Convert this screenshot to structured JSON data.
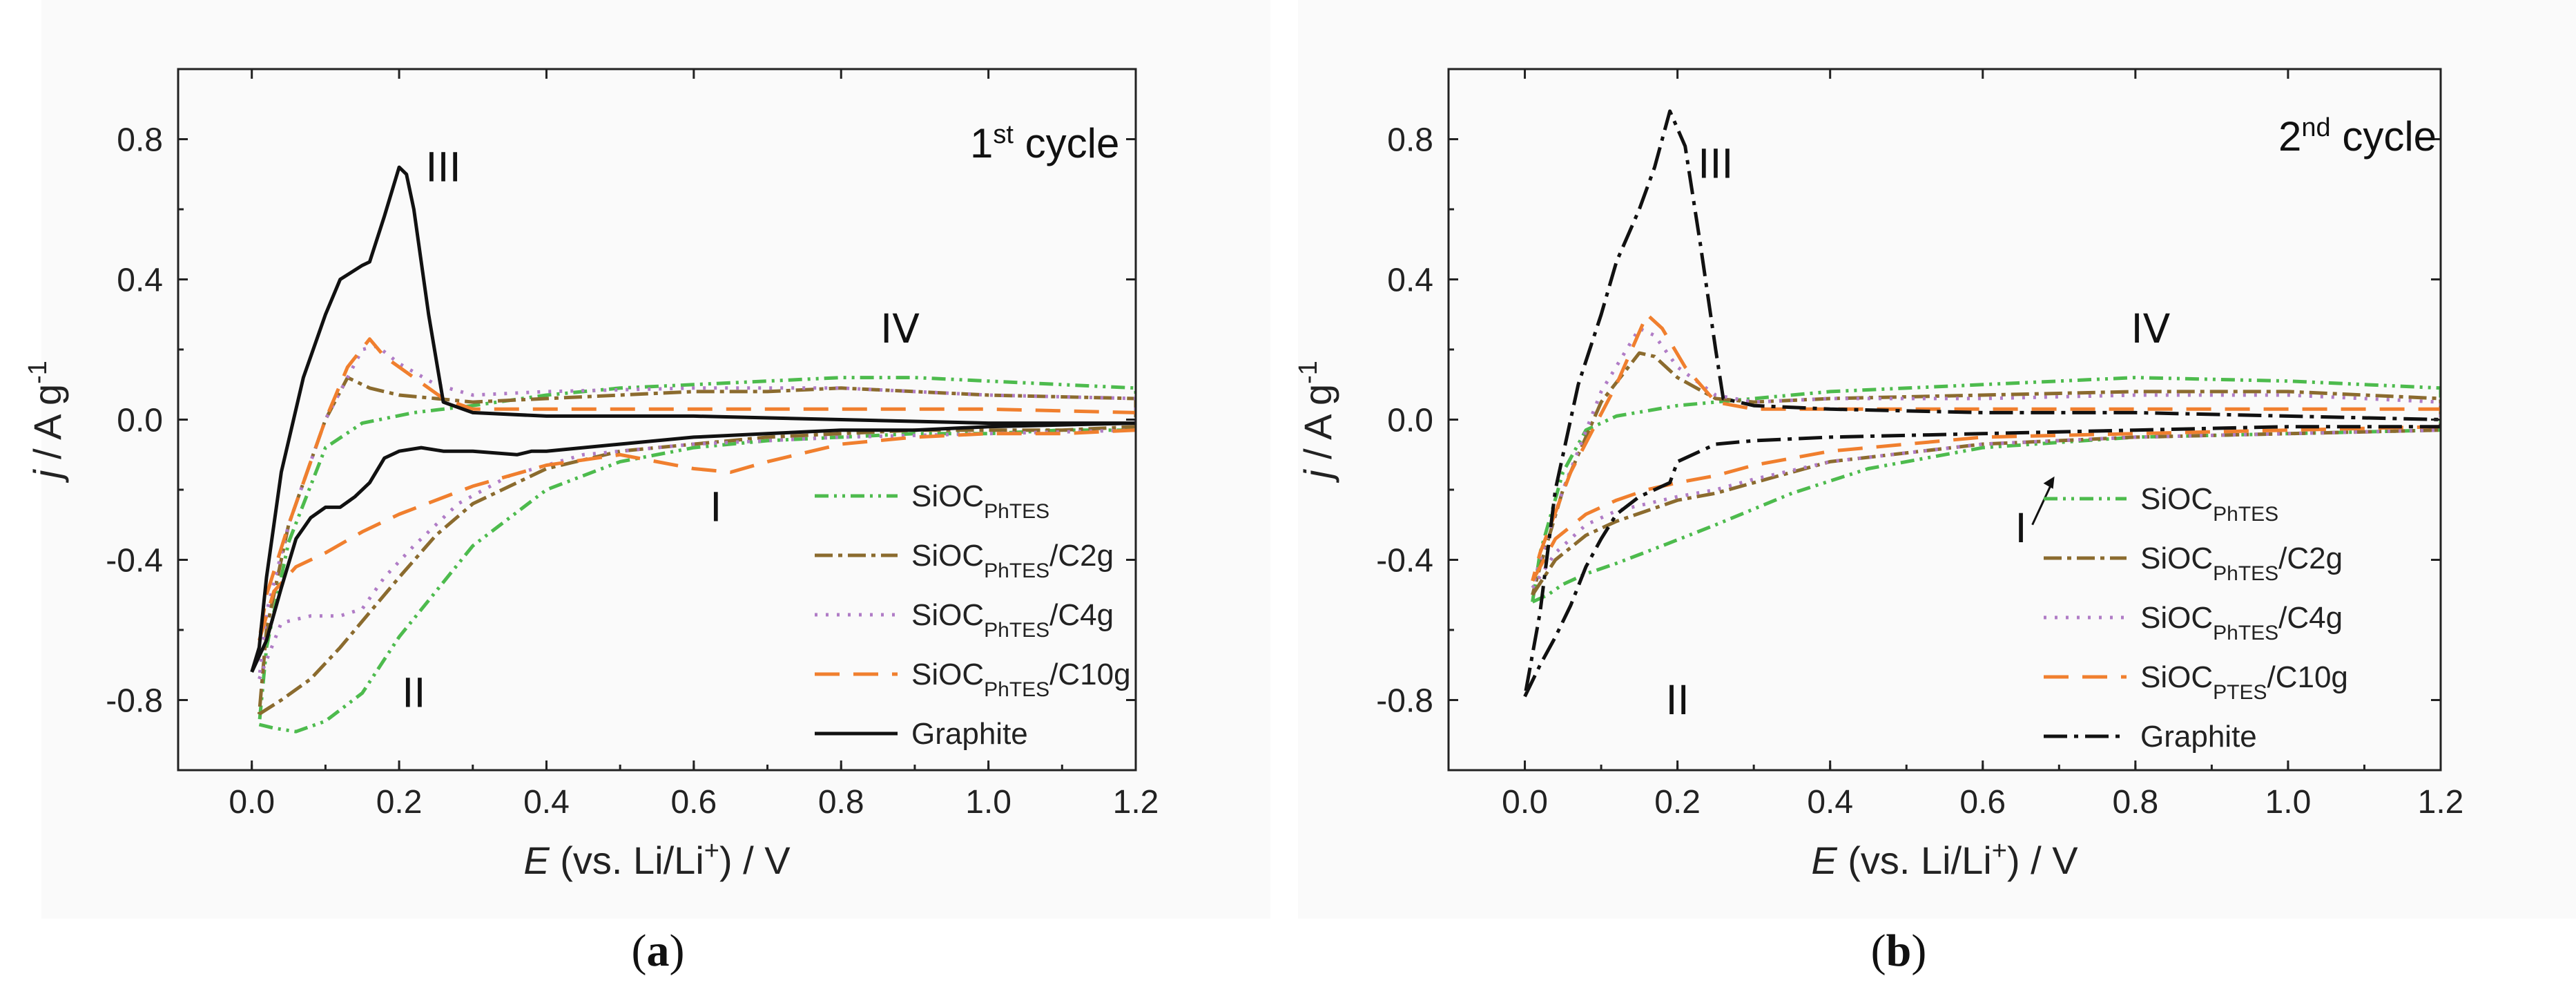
{
  "chart_data": [
    {
      "type": "line",
      "panel_label": "a",
      "title": "1st cycle",
      "title_main": "1",
      "title_sup": "st",
      "title_rest": " cycle",
      "xlabel": "E (vs. Li/Li+) / V",
      "ylabel": "j / A g-1",
      "xlim": [
        -0.1,
        1.2
      ],
      "ylim": [
        -1.0,
        1.0
      ],
      "xticks": [
        "0.0",
        "0.2",
        "0.4",
        "0.6",
        "0.8",
        "1.0",
        "1.2"
      ],
      "yticks": [
        "-0.8",
        "-0.4",
        "0.0",
        "0.4",
        "0.8"
      ],
      "annotations": [
        {
          "text": "III",
          "x": 0.26,
          "y": 0.68
        },
        {
          "text": "IV",
          "x": 0.88,
          "y": 0.22
        },
        {
          "text": "I",
          "x": 0.63,
          "y": -0.29
        },
        {
          "text": "II",
          "x": 0.22,
          "y": -0.82
        }
      ],
      "series": [
        {
          "name": "SiOC",
          "sub": "PhTES",
          "suffix": "",
          "color": "#4dbb4d",
          "dash": "20 8 4 8 4 8",
          "x": [
            0.01,
            0.03,
            0.06,
            0.1,
            0.15,
            0.2,
            0.3,
            0.4,
            0.5,
            0.6,
            0.7,
            0.8,
            0.9,
            1.0,
            1.1,
            1.2,
            1.2,
            1.1,
            1.0,
            0.9,
            0.8,
            0.7,
            0.6,
            0.5,
            0.4,
            0.3,
            0.22,
            0.15,
            0.1,
            0.05,
            0.02,
            0.01
          ],
          "y": [
            -0.87,
            -0.88,
            -0.89,
            -0.86,
            -0.78,
            -0.62,
            -0.36,
            -0.2,
            -0.12,
            -0.08,
            -0.06,
            -0.05,
            -0.04,
            -0.04,
            -0.03,
            -0.03,
            0.09,
            0.1,
            0.11,
            0.12,
            0.12,
            0.11,
            0.1,
            0.09,
            0.07,
            0.04,
            0.02,
            -0.01,
            -0.08,
            -0.35,
            -0.65,
            -0.87
          ]
        },
        {
          "name": "SiOC",
          "sub": "PhTES",
          "suffix": "/C2g",
          "color": "#8b6b2e",
          "dash": "26 8 6 8",
          "x": [
            0.01,
            0.04,
            0.08,
            0.12,
            0.16,
            0.2,
            0.25,
            0.3,
            0.4,
            0.5,
            0.6,
            0.7,
            0.8,
            0.9,
            1.0,
            1.1,
            1.2,
            1.2,
            1.0,
            0.9,
            0.8,
            0.7,
            0.6,
            0.5,
            0.4,
            0.3,
            0.25,
            0.2,
            0.16,
            0.13,
            0.1,
            0.05,
            0.02,
            0.01
          ],
          "y": [
            -0.84,
            -0.8,
            -0.74,
            -0.65,
            -0.55,
            -0.45,
            -0.33,
            -0.24,
            -0.14,
            -0.09,
            -0.07,
            -0.05,
            -0.04,
            -0.03,
            -0.03,
            -0.03,
            -0.02,
            0.06,
            0.07,
            0.08,
            0.09,
            0.08,
            0.08,
            0.07,
            0.06,
            0.05,
            0.06,
            0.07,
            0.09,
            0.12,
            0.0,
            -0.3,
            -0.6,
            -0.84
          ]
        },
        {
          "name": "SiOC",
          "sub": "PhTES",
          "suffix": "/C4g",
          "color": "#b07cc6",
          "dash": "4 12",
          "x": [
            0.01,
            0.04,
            0.08,
            0.12,
            0.15,
            0.18,
            0.22,
            0.28,
            0.35,
            0.45,
            0.6,
            0.8,
            1.0,
            1.2,
            1.2,
            1.0,
            0.8,
            0.6,
            0.4,
            0.3,
            0.25,
            0.2,
            0.17,
            0.15,
            0.1,
            0.05,
            0.02,
            0.01
          ],
          "y": [
            -0.74,
            -0.58,
            -0.56,
            -0.56,
            -0.54,
            -0.45,
            -0.36,
            -0.24,
            -0.16,
            -0.1,
            -0.07,
            -0.05,
            -0.04,
            -0.03,
            0.06,
            0.07,
            0.09,
            0.09,
            0.08,
            0.07,
            0.1,
            0.16,
            0.21,
            0.2,
            0.0,
            -0.3,
            -0.55,
            -0.74
          ]
        },
        {
          "name": "SiOC",
          "sub": "PhTES",
          "suffix": "/C10g",
          "color": "#f07f2e",
          "dash": "36 20",
          "x": [
            0.01,
            0.03,
            0.06,
            0.1,
            0.15,
            0.2,
            0.25,
            0.3,
            0.35,
            0.4,
            0.5,
            0.6,
            0.65,
            0.7,
            0.8,
            0.9,
            1.0,
            1.1,
            1.2,
            1.2,
            1.0,
            0.8,
            0.6,
            0.4,
            0.3,
            0.26,
            0.22,
            0.18,
            0.16,
            0.13,
            0.1,
            0.05,
            0.02,
            0.01
          ],
          "y": [
            -0.63,
            -0.49,
            -0.42,
            -0.38,
            -0.32,
            -0.27,
            -0.23,
            -0.19,
            -0.16,
            -0.13,
            -0.1,
            -0.14,
            -0.15,
            -0.12,
            -0.07,
            -0.05,
            -0.04,
            -0.04,
            -0.03,
            0.02,
            0.03,
            0.03,
            0.03,
            0.03,
            0.03,
            0.06,
            0.12,
            0.18,
            0.23,
            0.15,
            0.0,
            -0.3,
            -0.5,
            -0.63
          ]
        },
        {
          "name": "Graphite",
          "sub": "",
          "suffix": "",
          "color": "#111111",
          "dash": "",
          "x": [
            0.0,
            0.02,
            0.04,
            0.06,
            0.08,
            0.1,
            0.12,
            0.14,
            0.16,
            0.18,
            0.2,
            0.23,
            0.26,
            0.3,
            0.36,
            0.38,
            0.4,
            0.5,
            0.6,
            0.7,
            0.8,
            0.9,
            1.0,
            1.2,
            1.2,
            1.0,
            0.8,
            0.6,
            0.4,
            0.3,
            0.26,
            0.24,
            0.22,
            0.21,
            0.2,
            0.18,
            0.16,
            0.15,
            0.12,
            0.1,
            0.07,
            0.04,
            0.02,
            0.01,
            0.0
          ],
          "y": [
            -0.72,
            -0.63,
            -0.48,
            -0.34,
            -0.28,
            -0.25,
            -0.25,
            -0.22,
            -0.18,
            -0.11,
            -0.09,
            -0.08,
            -0.09,
            -0.09,
            -0.1,
            -0.09,
            -0.09,
            -0.07,
            -0.05,
            -0.04,
            -0.03,
            -0.03,
            -0.02,
            -0.01,
            -0.01,
            -0.01,
            0.0,
            0.01,
            0.01,
            0.02,
            0.05,
            0.3,
            0.6,
            0.7,
            0.72,
            0.58,
            0.45,
            0.44,
            0.4,
            0.3,
            0.12,
            -0.15,
            -0.45,
            -0.65,
            -0.72
          ]
        }
      ]
    },
    {
      "type": "line",
      "panel_label": "b",
      "title": "2nd cycle",
      "title_main": "2",
      "title_sup": "nd",
      "title_rest": " cycle",
      "xlabel": "E (vs. Li/Li+) / V",
      "ylabel": "j / A g-1",
      "xlim": [
        -0.1,
        1.2
      ],
      "ylim": [
        -1.0,
        1.0
      ],
      "xticks": [
        "0.0",
        "0.2",
        "0.4",
        "0.6",
        "0.8",
        "1.0",
        "1.2"
      ],
      "yticks": [
        "-0.8",
        "-0.4",
        "0.0",
        "0.4",
        "0.8"
      ],
      "annotations": [
        {
          "text": "III",
          "x": 0.25,
          "y": 0.69
        },
        {
          "text": "IV",
          "x": 0.82,
          "y": 0.22
        },
        {
          "text": "I",
          "x": 0.65,
          "y": -0.35
        },
        {
          "text": "II",
          "x": 0.2,
          "y": -0.84
        }
      ],
      "series": [
        {
          "name": "SiOC",
          "sub": "PhTES",
          "suffix": "",
          "color": "#4dbb4d",
          "dash": "20 8 4 8 4 8",
          "x": [
            0.01,
            0.03,
            0.05,
            0.08,
            0.12,
            0.18,
            0.25,
            0.35,
            0.45,
            0.6,
            0.8,
            1.0,
            1.2,
            1.2,
            1.0,
            0.8,
            0.6,
            0.4,
            0.3,
            0.2,
            0.12,
            0.08,
            0.05,
            0.02,
            0.01
          ],
          "y": [
            -0.52,
            -0.5,
            -0.47,
            -0.44,
            -0.41,
            -0.36,
            -0.3,
            -0.21,
            -0.14,
            -0.08,
            -0.05,
            -0.04,
            -0.03,
            0.09,
            0.11,
            0.12,
            0.1,
            0.08,
            0.06,
            0.04,
            0.01,
            -0.03,
            -0.15,
            -0.38,
            -0.52
          ]
        },
        {
          "name": "SiOC",
          "sub": "PhTES",
          "suffix": "/C2g",
          "color": "#8b6b2e",
          "dash": "26 8 6 8",
          "x": [
            0.01,
            0.04,
            0.08,
            0.12,
            0.16,
            0.2,
            0.25,
            0.3,
            0.4,
            0.6,
            0.8,
            1.0,
            1.2,
            1.2,
            1.0,
            0.8,
            0.6,
            0.4,
            0.3,
            0.25,
            0.2,
            0.17,
            0.15,
            0.1,
            0.05,
            0.02,
            0.01
          ],
          "y": [
            -0.5,
            -0.4,
            -0.33,
            -0.29,
            -0.26,
            -0.23,
            -0.21,
            -0.18,
            -0.12,
            -0.07,
            -0.05,
            -0.04,
            -0.03,
            0.06,
            0.08,
            0.08,
            0.07,
            0.06,
            0.05,
            0.06,
            0.12,
            0.18,
            0.19,
            0.05,
            -0.2,
            -0.42,
            -0.5
          ]
        },
        {
          "name": "SiOC",
          "sub": "PhTES",
          "suffix": "/C4g",
          "color": "#b07cc6",
          "dash": "4 12",
          "x": [
            0.01,
            0.04,
            0.08,
            0.12,
            0.16,
            0.2,
            0.25,
            0.3,
            0.4,
            0.6,
            0.8,
            1.0,
            1.2,
            1.2,
            1.0,
            0.8,
            0.6,
            0.4,
            0.3,
            0.25,
            0.2,
            0.17,
            0.15,
            0.1,
            0.05,
            0.02,
            0.01
          ],
          "y": [
            -0.48,
            -0.38,
            -0.3,
            -0.26,
            -0.24,
            -0.22,
            -0.2,
            -0.17,
            -0.12,
            -0.07,
            -0.05,
            -0.04,
            -0.03,
            0.05,
            0.07,
            0.07,
            0.06,
            0.06,
            0.05,
            0.07,
            0.15,
            0.24,
            0.26,
            0.08,
            -0.2,
            -0.4,
            -0.48
          ]
        },
        {
          "name": "SiOC",
          "sub": "PTES",
          "suffix": "/C10g",
          "color": "#f07f2e",
          "dash": "36 20",
          "x": [
            0.01,
            0.04,
            0.08,
            0.12,
            0.16,
            0.2,
            0.25,
            0.3,
            0.4,
            0.6,
            0.8,
            1.0,
            1.2,
            1.2,
            1.0,
            0.8,
            0.6,
            0.4,
            0.3,
            0.25,
            0.21,
            0.18,
            0.16,
            0.12,
            0.06,
            0.02,
            0.01
          ],
          "y": [
            -0.46,
            -0.34,
            -0.27,
            -0.23,
            -0.2,
            -0.18,
            -0.16,
            -0.13,
            -0.09,
            -0.05,
            -0.04,
            -0.03,
            -0.02,
            0.03,
            0.03,
            0.03,
            0.03,
            0.03,
            0.03,
            0.05,
            0.15,
            0.26,
            0.3,
            0.1,
            -0.15,
            -0.38,
            -0.46
          ]
        },
        {
          "name": "Graphite",
          "sub": "",
          "suffix": "",
          "color": "#111111",
          "dash": "34 10 6 10",
          "x": [
            0.0,
            0.02,
            0.04,
            0.06,
            0.08,
            0.1,
            0.12,
            0.15,
            0.17,
            0.19,
            0.2,
            0.25,
            0.3,
            0.4,
            0.6,
            0.8,
            1.0,
            1.2,
            1.2,
            1.0,
            0.8,
            0.6,
            0.4,
            0.3,
            0.26,
            0.25,
            0.23,
            0.21,
            0.19,
            0.17,
            0.15,
            0.12,
            0.1,
            0.07,
            0.04,
            0.02,
            0.0
          ],
          "y": [
            -0.79,
            -0.7,
            -0.62,
            -0.53,
            -0.42,
            -0.34,
            -0.27,
            -0.22,
            -0.2,
            -0.18,
            -0.12,
            -0.07,
            -0.06,
            -0.05,
            -0.04,
            -0.03,
            -0.02,
            -0.02,
            0.0,
            0.01,
            0.02,
            0.02,
            0.03,
            0.04,
            0.06,
            0.2,
            0.5,
            0.78,
            0.88,
            0.72,
            0.6,
            0.45,
            0.3,
            0.1,
            -0.2,
            -0.55,
            -0.79
          ]
        }
      ]
    }
  ]
}
